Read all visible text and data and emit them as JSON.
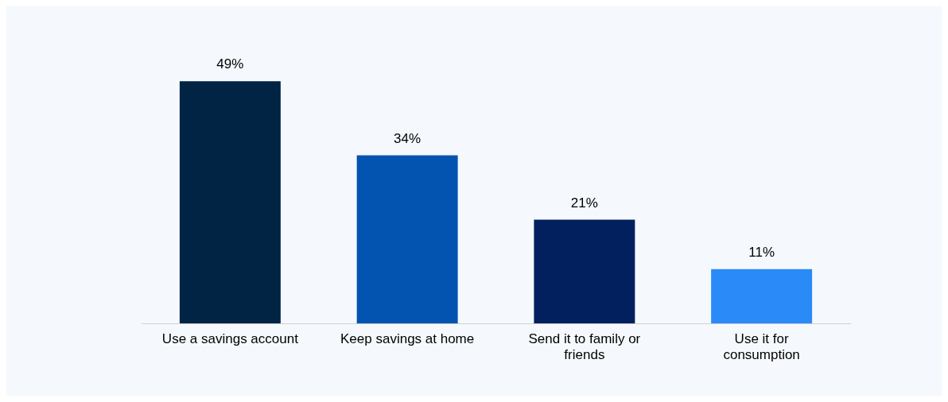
{
  "chart_data": {
    "type": "bar",
    "categories": [
      "Use a savings account",
      "Keep savings at home",
      "Send it to family or friends",
      "Use it for consumption"
    ],
    "values": [
      49,
      34,
      21,
      11
    ],
    "colors": [
      "#012445",
      "#0353b0",
      "#021f5e",
      "#2a8af7"
    ],
    "value_labels": [
      "49%",
      "34%",
      "21%",
      "11%"
    ],
    "grid": false,
    "legend": false
  }
}
